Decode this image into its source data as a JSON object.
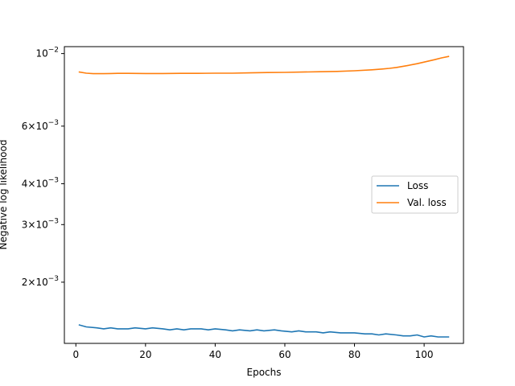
{
  "chart_data": {
    "type": "line",
    "title": "",
    "xlabel": "Epochs",
    "ylabel": "Negative log likelihood",
    "yscale": "log",
    "xlim": [
      -3.3,
      111.3
    ],
    "ylim": [
      0.0013,
      0.0105
    ],
    "grid": false,
    "legend_position": "center-right",
    "x_ticks": [
      {
        "value": 0,
        "label": "0"
      },
      {
        "value": 20,
        "label": "20"
      },
      {
        "value": 40,
        "label": "40"
      },
      {
        "value": 60,
        "label": "60"
      },
      {
        "value": 80,
        "label": "80"
      },
      {
        "value": 100,
        "label": "100"
      }
    ],
    "y_ticks": [
      {
        "value": 0.01,
        "base": "10",
        "exp": "−2"
      },
      {
        "value": 0.006,
        "base": "6×10",
        "exp": "−3"
      },
      {
        "value": 0.004,
        "base": "4×10",
        "exp": "−3"
      },
      {
        "value": 0.003,
        "base": "3×10",
        "exp": "−3"
      },
      {
        "value": 0.002,
        "base": "2×10",
        "exp": "−3"
      }
    ],
    "series": [
      {
        "name": "Loss",
        "color": "#1f77b4",
        "points": [
          [
            1,
            0.00148
          ],
          [
            3,
            0.00146
          ],
          [
            6,
            0.00145
          ],
          [
            8,
            0.00144
          ],
          [
            10,
            0.00145
          ],
          [
            12,
            0.00144
          ],
          [
            15,
            0.00144
          ],
          [
            17,
            0.00145
          ],
          [
            20,
            0.00144
          ],
          [
            22,
            0.00145
          ],
          [
            25,
            0.00144
          ],
          [
            27,
            0.00143
          ],
          [
            29,
            0.00144
          ],
          [
            31,
            0.00143
          ],
          [
            33,
            0.00144
          ],
          [
            36,
            0.00144
          ],
          [
            38,
            0.00143
          ],
          [
            40,
            0.00144
          ],
          [
            43,
            0.00143
          ],
          [
            45,
            0.00142
          ],
          [
            47,
            0.00143
          ],
          [
            50,
            0.00142
          ],
          [
            52,
            0.00143
          ],
          [
            54,
            0.00142
          ],
          [
            57,
            0.00143
          ],
          [
            59,
            0.00142
          ],
          [
            62,
            0.00141
          ],
          [
            64,
            0.00142
          ],
          [
            66,
            0.00141
          ],
          [
            69,
            0.00141
          ],
          [
            71,
            0.0014
          ],
          [
            73,
            0.00141
          ],
          [
            76,
            0.0014
          ],
          [
            78,
            0.0014
          ],
          [
            80,
            0.0014
          ],
          [
            83,
            0.00139
          ],
          [
            85,
            0.00139
          ],
          [
            87,
            0.00138
          ],
          [
            89,
            0.00139
          ],
          [
            92,
            0.00138
          ],
          [
            94,
            0.00137
          ],
          [
            96,
            0.00137
          ],
          [
            98,
            0.00138
          ],
          [
            100,
            0.00136
          ],
          [
            102,
            0.00137
          ],
          [
            104,
            0.00136
          ],
          [
            106,
            0.00136
          ],
          [
            107,
            0.00136
          ]
        ]
      },
      {
        "name": "Val. loss",
        "color": "#ff7f0e",
        "points": [
          [
            1,
            0.00878
          ],
          [
            3,
            0.00871
          ],
          [
            5,
            0.00868
          ],
          [
            8,
            0.00868
          ],
          [
            10,
            0.00869
          ],
          [
            12,
            0.0087
          ],
          [
            15,
            0.0087
          ],
          [
            20,
            0.00869
          ],
          [
            25,
            0.00869
          ],
          [
            30,
            0.0087
          ],
          [
            35,
            0.0087
          ],
          [
            40,
            0.00871
          ],
          [
            45,
            0.00871
          ],
          [
            50,
            0.00873
          ],
          [
            55,
            0.00875
          ],
          [
            60,
            0.00876
          ],
          [
            65,
            0.00878
          ],
          [
            70,
            0.0088
          ],
          [
            75,
            0.00882
          ],
          [
            80,
            0.00886
          ],
          [
            85,
            0.00892
          ],
          [
            88,
            0.00897
          ],
          [
            90,
            0.00901
          ],
          [
            92,
            0.00907
          ],
          [
            95,
            0.00918
          ],
          [
            98,
            0.00931
          ],
          [
            100,
            0.00942
          ],
          [
            103,
            0.00958
          ],
          [
            105,
            0.0097
          ],
          [
            107,
            0.0098
          ]
        ]
      }
    ]
  }
}
